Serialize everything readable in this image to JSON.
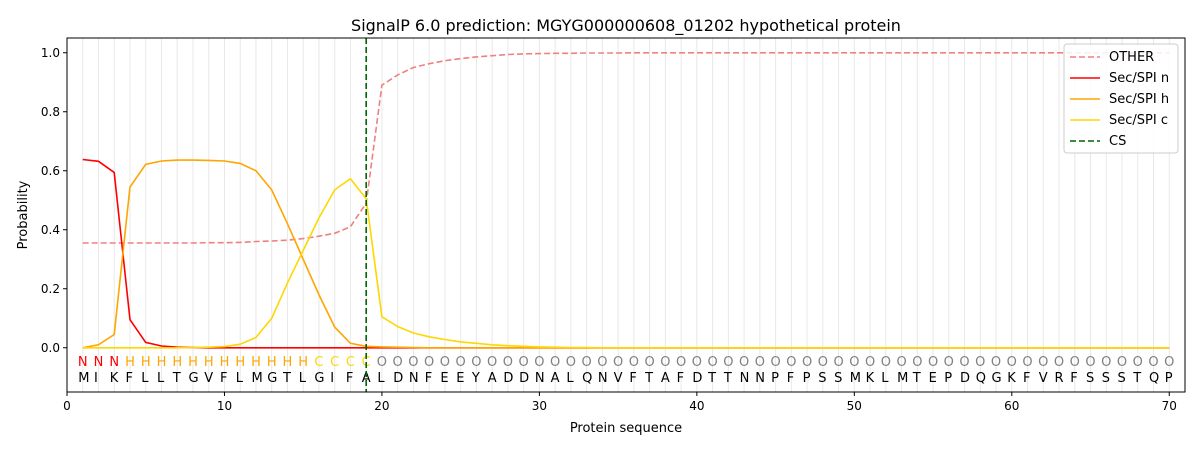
{
  "chart_data": {
    "type": "line",
    "title": "SignalP 6.0 prediction: MGYG000000608_01202 hypothetical protein",
    "xlabel": "Protein sequence",
    "ylabel": "Probability",
    "xlim": [
      0,
      71
    ],
    "ylim": [
      -0.15,
      1.05
    ],
    "xticks": [
      0,
      10,
      20,
      30,
      40,
      50,
      60,
      70
    ],
    "yticks": [
      0.0,
      0.2,
      0.4,
      0.6,
      0.8,
      1.0
    ],
    "legend_position": "top-right",
    "sequence": "MIKFLLTGVFLMGTLGIFALDNFEEYADDNALQNVFTAFDTTNNPFPSSMKLMTEPDQGKFVRFSSSTQP",
    "labels": "NNNHHHHHHHHHHHHCCCCOOOOOOOOOOOOOOOOOOOOOOOOOOOOOOOOOOOOOOOOOOOOOOOOOOO",
    "label_colors": {
      "N": "#ff0000",
      "H": "#ffa500",
      "C": "#ffd700",
      "O": "#808080"
    },
    "cleavage_site": 19,
    "series": [
      {
        "name": "OTHER",
        "color": "#f08080",
        "dash": true,
        "values": [
          0.355,
          0.355,
          0.355,
          0.355,
          0.355,
          0.355,
          0.355,
          0.355,
          0.356,
          0.356,
          0.357,
          0.36,
          0.362,
          0.365,
          0.37,
          0.378,
          0.388,
          0.41,
          0.49,
          0.89,
          0.925,
          0.95,
          0.963,
          0.973,
          0.98,
          0.986,
          0.99,
          0.994,
          0.996,
          0.997,
          0.998,
          0.998,
          0.999,
          0.999,
          0.999,
          1,
          1,
          1,
          1,
          1,
          1,
          1,
          1,
          1,
          1,
          1,
          1,
          1,
          1,
          1,
          1,
          1,
          1,
          1,
          1,
          1,
          1,
          1,
          1,
          1,
          1,
          1,
          1,
          1,
          1,
          1,
          1,
          1,
          1,
          1
        ]
      },
      {
        "name": "Sec/SPI n",
        "color": "#ff0000",
        "values": [
          0.638,
          0.632,
          0.594,
          0.095,
          0.018,
          0.006,
          0.002,
          0.001,
          0,
          0,
          0,
          0,
          0,
          0,
          0,
          0,
          0,
          0,
          0,
          0,
          0,
          0,
          0,
          0,
          0,
          0,
          0,
          0,
          0,
          0,
          0,
          0,
          0,
          0,
          0,
          0,
          0,
          0,
          0,
          0,
          0,
          0,
          0,
          0,
          0,
          0,
          0,
          0,
          0,
          0,
          0,
          0,
          0,
          0,
          0,
          0,
          0,
          0,
          0,
          0,
          0,
          0,
          0,
          0,
          0,
          0,
          0,
          0,
          0,
          0
        ]
      },
      {
        "name": "Sec/SPI h",
        "color": "#ffa500",
        "values": [
          0.0,
          0.01,
          0.045,
          0.545,
          0.622,
          0.633,
          0.636,
          0.636,
          0.635,
          0.633,
          0.625,
          0.6,
          0.535,
          0.42,
          0.3,
          0.18,
          0.07,
          0.015,
          0.005,
          0.003,
          0.002,
          0.001,
          0,
          0,
          0,
          0,
          0,
          0,
          0,
          0,
          0,
          0,
          0,
          0,
          0,
          0,
          0,
          0,
          0,
          0,
          0,
          0,
          0,
          0,
          0,
          0,
          0,
          0,
          0,
          0,
          0,
          0,
          0,
          0,
          0,
          0,
          0,
          0,
          0,
          0,
          0,
          0,
          0,
          0,
          0,
          0,
          0,
          0,
          0,
          0
        ]
      },
      {
        "name": "Sec/SPI c",
        "color": "#ffd700",
        "values": [
          0,
          0,
          0,
          0,
          0,
          0,
          0,
          0.001,
          0.002,
          0.004,
          0.012,
          0.035,
          0.1,
          0.22,
          0.33,
          0.44,
          0.535,
          0.573,
          0.505,
          0.105,
          0.072,
          0.05,
          0.037,
          0.028,
          0.02,
          0.015,
          0.01,
          0.007,
          0.005,
          0.003,
          0.002,
          0.001,
          0.001,
          0,
          0,
          0,
          0,
          0,
          0,
          0,
          0,
          0,
          0,
          0,
          0,
          0,
          0,
          0,
          0,
          0,
          0,
          0,
          0,
          0,
          0,
          0,
          0,
          0,
          0,
          0,
          0,
          0,
          0,
          0,
          0,
          0,
          0,
          0,
          0,
          0
        ]
      }
    ],
    "cs_legend": {
      "name": "CS",
      "color": "#006400"
    }
  }
}
